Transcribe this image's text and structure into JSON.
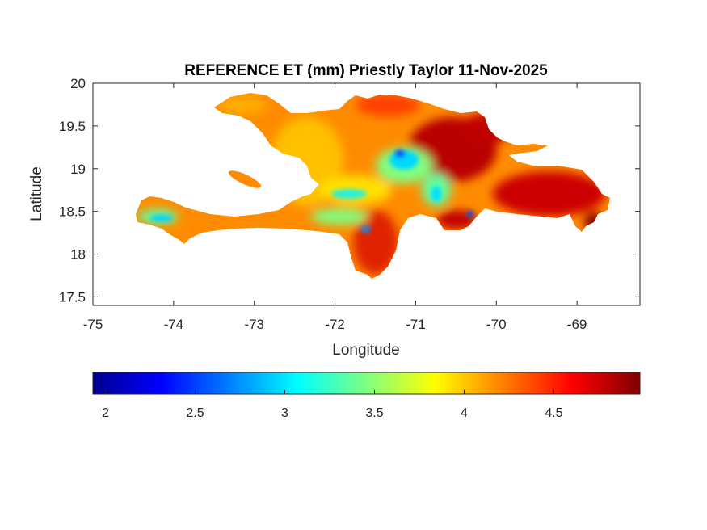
{
  "chart_data": {
    "type": "heatmap",
    "title": "REFERENCE ET (mm) Priestly Taylor 11-Nov-2025",
    "xlabel": "Longitude",
    "ylabel": "Latitude",
    "xlim": [
      -75,
      -68.22
    ],
    "ylim": [
      17.4,
      20
    ],
    "xticks": [
      -75,
      -74,
      -73,
      -72,
      -71,
      -70,
      -69
    ],
    "xtick_labels": [
      "-75",
      "-74",
      "-73",
      "-72",
      "-71",
      "-70",
      "-69"
    ],
    "yticks": [
      17.5,
      18,
      18.5,
      19,
      19.5,
      20
    ],
    "ytick_labels": [
      "17.5",
      "18",
      "18.5",
      "19",
      "19.5",
      "20"
    ],
    "grid": false,
    "colormap": "jet",
    "colorbar": {
      "location": "bottom",
      "range": [
        1.93,
        4.98
      ],
      "ticks": [
        2,
        2.5,
        3,
        3.5,
        4,
        4.5
      ],
      "tick_labels": [
        "2",
        "2.5",
        "3",
        "3.5",
        "4",
        "4.5"
      ]
    },
    "field_summary": {
      "typical_value": 4.2,
      "min_value_approx": 2.3,
      "max_value_approx": 4.95
    }
  }
}
